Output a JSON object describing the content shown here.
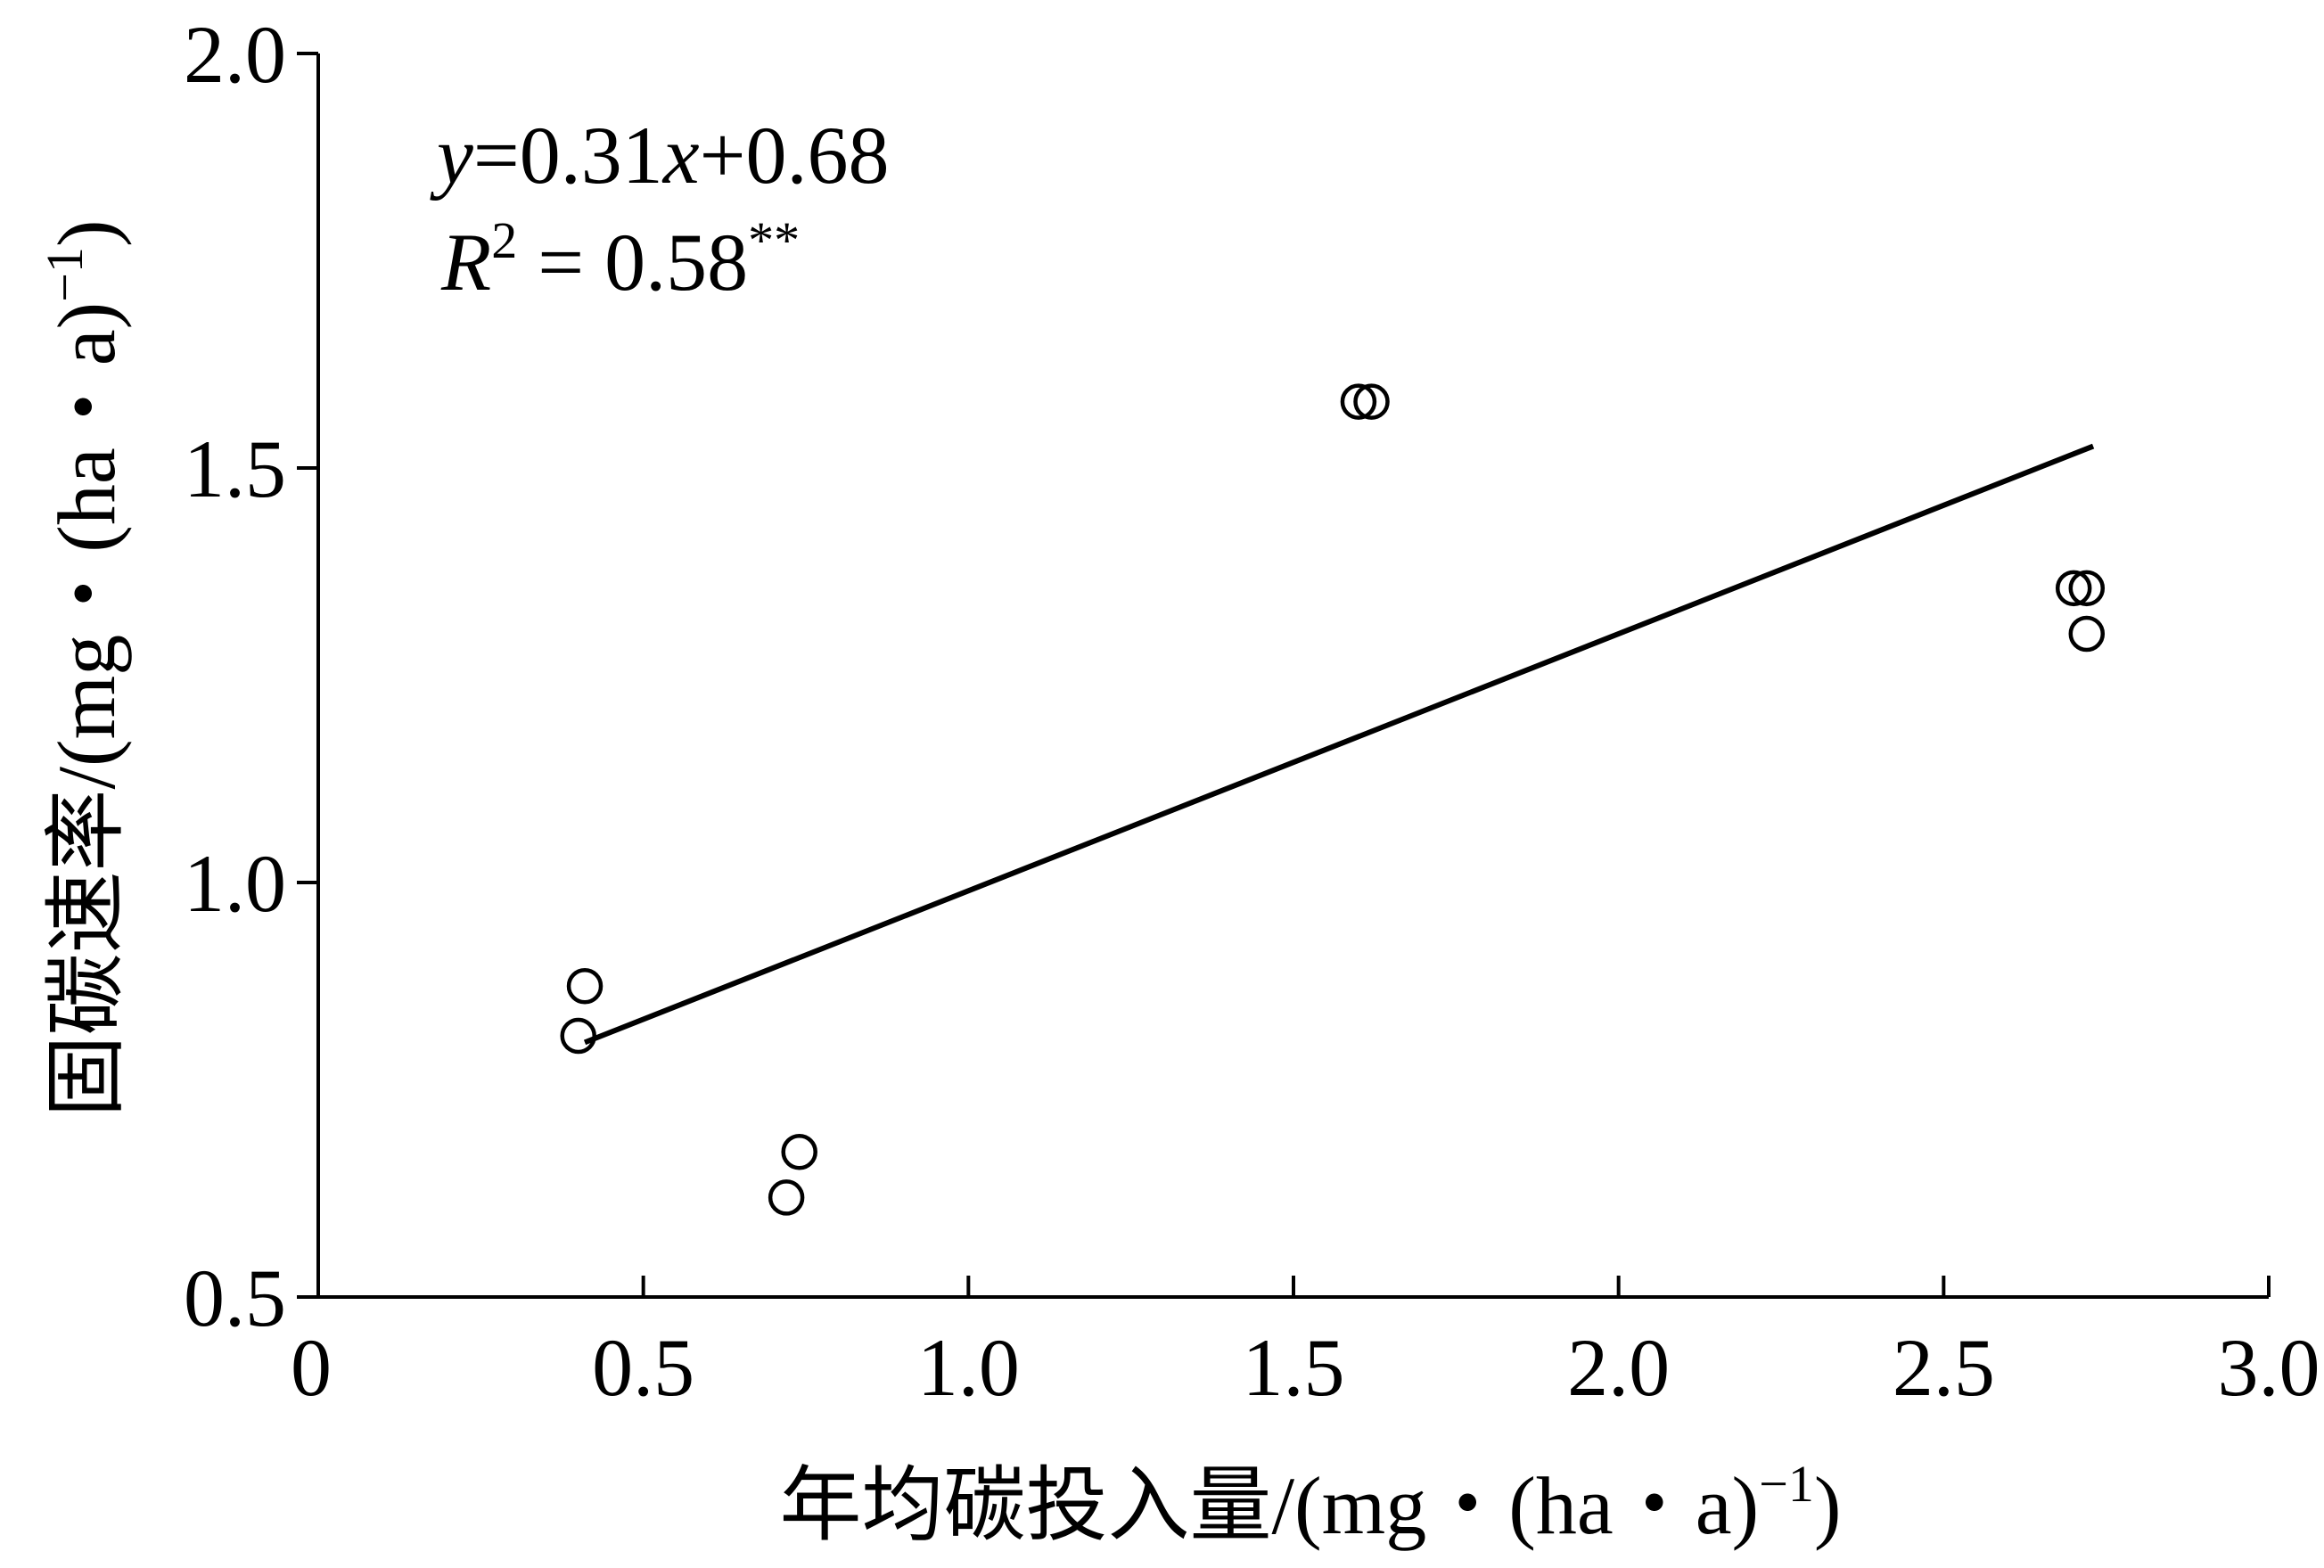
{
  "chart_data": {
    "type": "scatter",
    "title": "",
    "xlabel": "年均碳投入量/(mg・(ha・a)",
    "xlabel_sup": "−1",
    "xlabel_tail": ")",
    "ylabel": "固碳速率/(mg・(ha・a)",
    "ylabel_sup": "−1",
    "ylabel_tail": ")",
    "xlim": [
      0,
      3.0
    ],
    "ylim": [
      0.5,
      2.0
    ],
    "xticks": [
      0,
      0.5,
      1.0,
      1.5,
      2.0,
      2.5,
      3.0
    ],
    "xtick_labels": [
      "0",
      "0.5",
      "1.0",
      "1.5",
      "2.0",
      "2.5",
      "3.0"
    ],
    "yticks": [
      0.5,
      1.0,
      1.5,
      2.0
    ],
    "ytick_labels": [
      "0.5",
      "1.0",
      "1.5",
      "2.0"
    ],
    "grid": false,
    "series": [
      {
        "points": [
          {
            "x": 0.41,
            "y": 0.875
          },
          {
            "x": 0.4,
            "y": 0.815
          },
          {
            "x": 0.74,
            "y": 0.675
          },
          {
            "x": 0.72,
            "y": 0.62
          },
          {
            "x": 1.6,
            "y": 1.58
          },
          {
            "x": 1.62,
            "y": 1.58
          },
          {
            "x": 2.7,
            "y": 1.355
          },
          {
            "x": 2.72,
            "y": 1.355
          },
          {
            "x": 2.72,
            "y": 1.3
          }
        ]
      }
    ],
    "fit": {
      "slope": 0.31,
      "intercept": 0.68,
      "x_range": [
        0.41,
        2.73
      ]
    },
    "annotation": {
      "eq_y": "y",
      "eq_part1": "=0.31",
      "eq_x": "x",
      "eq_part2": "+0.68",
      "r_letter": "R",
      "r_sup": "2",
      "r_value": " = 0.58",
      "r_stars": "**"
    }
  }
}
